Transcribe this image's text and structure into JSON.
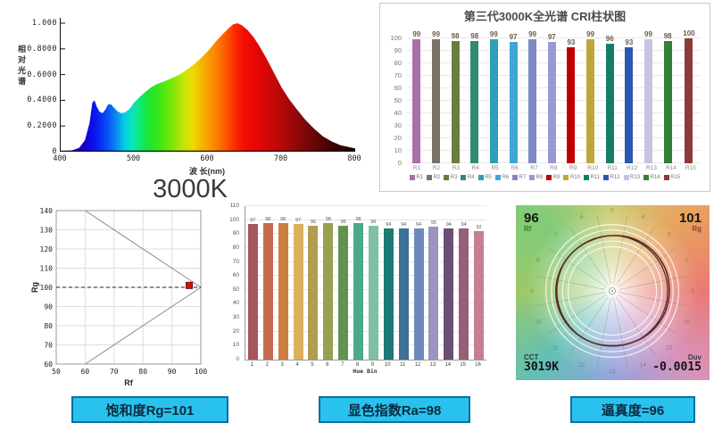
{
  "theme": {
    "caption_bg": "#29c2ef",
    "caption_border": "#0d6f9d",
    "caption_text": "#0a2a3c",
    "rf_label_color": "#2e7d32",
    "rg_label_color": "#8f3b2e",
    "marker_color": "#cc1111"
  },
  "captions": [
    {
      "text": "饱和度Rg=101"
    },
    {
      "text": "显色指数Ra=98"
    },
    {
      "text": "逼真度=96"
    }
  ],
  "chart_data": [
    {
      "id": "spectrum",
      "type": "area",
      "title": "3000K",
      "xlabel": "波 长(nm)",
      "ylabel": "相对光谱",
      "xlim": [
        400,
        800
      ],
      "ylim": [
        0,
        1
      ],
      "x_ticks": [
        400,
        500,
        600,
        700,
        800
      ],
      "y_ticks": [
        "0",
        "0.2000",
        "0.4000",
        "0.6000",
        "0.8000",
        "1.000"
      ],
      "grid": false,
      "x": [
        400,
        415,
        425,
        433,
        439,
        443,
        446,
        449,
        453,
        457,
        461,
        464,
        468,
        472,
        477,
        482,
        487,
        493,
        500,
        508,
        516,
        524,
        532,
        540,
        548,
        556,
        564,
        572,
        580,
        588,
        596,
        604,
        612,
        620,
        628,
        634,
        640,
        646,
        654,
        662,
        670,
        680,
        690,
        700,
        710,
        720,
        732,
        744,
        756,
        768,
        780,
        800
      ],
      "y": [
        0.005,
        0.01,
        0.03,
        0.09,
        0.22,
        0.38,
        0.4,
        0.35,
        0.31,
        0.3,
        0.33,
        0.365,
        0.37,
        0.345,
        0.315,
        0.3,
        0.305,
        0.33,
        0.385,
        0.43,
        0.47,
        0.505,
        0.53,
        0.545,
        0.565,
        0.585,
        0.61,
        0.64,
        0.675,
        0.715,
        0.76,
        0.81,
        0.865,
        0.915,
        0.96,
        0.99,
        1.0,
        0.985,
        0.945,
        0.89,
        0.82,
        0.72,
        0.61,
        0.5,
        0.41,
        0.335,
        0.25,
        0.18,
        0.12,
        0.08,
        0.05,
        0.025
      ],
      "gradient_stops": [
        [
          0,
          "#23009e"
        ],
        [
          8,
          "#1500d0"
        ],
        [
          11,
          "#0a10ee"
        ],
        [
          13,
          "#0628f2"
        ],
        [
          16,
          "#0a52f5"
        ],
        [
          19,
          "#0b8cf0"
        ],
        [
          21.5,
          "#07c8e8"
        ],
        [
          24,
          "#06e6c0"
        ],
        [
          27,
          "#10e878"
        ],
        [
          30,
          "#1ce62e"
        ],
        [
          34,
          "#3fe812"
        ],
        [
          38,
          "#7fe60a"
        ],
        [
          42,
          "#c6e605"
        ],
        [
          45,
          "#eed902"
        ],
        [
          48,
          "#f6b400"
        ],
        [
          52,
          "#fb8a00"
        ],
        [
          56,
          "#fd5a00"
        ],
        [
          59,
          "#fb2d00"
        ],
        [
          62,
          "#f50f02"
        ],
        [
          66,
          "#e80606"
        ],
        [
          70,
          "#d40707"
        ],
        [
          75,
          "#b50808"
        ],
        [
          80,
          "#920808"
        ],
        [
          85,
          "#6f0606"
        ],
        [
          90,
          "#4c0404"
        ],
        [
          95,
          "#2e0202"
        ],
        [
          100,
          "#1a0101"
        ]
      ]
    },
    {
      "id": "cri",
      "type": "bar",
      "title": "第三代3000K全光谱 CRI柱状图",
      "categories": [
        "R1",
        "R2",
        "R3",
        "R4",
        "R5",
        "R6",
        "R7",
        "R8",
        "R9",
        "R10",
        "R11",
        "R12",
        "R13",
        "R14",
        "R15"
      ],
      "values": [
        99,
        99,
        98,
        98,
        99,
        97,
        99,
        97,
        93,
        99,
        96,
        93,
        99,
        98,
        100
      ],
      "colors": [
        "#a96fa8",
        "#7b7164",
        "#6a7d3c",
        "#2f8c72",
        "#2f9eb7",
        "#3fa7d2",
        "#7e88c4",
        "#9b99d5",
        "#c00000",
        "#bda73a",
        "#157e6b",
        "#2a58b0",
        "#c6c4df",
        "#338039",
        "#8e3a38"
      ],
      "ylim": [
        0,
        100
      ],
      "y_tick_step": 10,
      "grid": true,
      "legend_position": "bottom"
    },
    {
      "id": "rg_rf",
      "type": "scatter",
      "xlabel": "Rf",
      "ylabel": "Rg",
      "xlim": [
        50,
        100
      ],
      "ylim": [
        60,
        140
      ],
      "x_ticks": [
        50,
        60,
        70,
        80,
        90,
        100
      ],
      "y_ticks": [
        60,
        70,
        80,
        90,
        100,
        110,
        120,
        130,
        140
      ],
      "grid": true,
      "point": {
        "x": 96,
        "y": 101
      },
      "boundary_lines": [
        [
          [
            60,
            140
          ],
          [
            100,
            100
          ]
        ],
        [
          [
            60,
            60
          ],
          [
            100,
            100
          ]
        ]
      ],
      "dashed_line_y": 100
    },
    {
      "id": "lcf",
      "type": "bar",
      "title": "",
      "xlabel": "Hue Bin",
      "ylabel": "Local Color Fidelity",
      "categories": [
        "1",
        "2",
        "3",
        "4",
        "5",
        "6",
        "7",
        "8",
        "9",
        "10",
        "11",
        "12",
        "13",
        "14",
        "15",
        "16"
      ],
      "values": [
        97,
        98,
        98,
        97,
        96,
        98,
        96,
        98,
        96,
        94,
        94,
        94,
        95,
        94,
        94,
        92
      ],
      "colors": [
        "#a8555f",
        "#c46a4e",
        "#cd7e41",
        "#dcb05e",
        "#b09d4f",
        "#97a051",
        "#609350",
        "#4caa89",
        "#7dc1a2",
        "#1d7a74",
        "#3f7095",
        "#6d89be",
        "#9b94be",
        "#6b4f72",
        "#955e79",
        "#c57f92"
      ],
      "ylim": [
        0,
        110
      ],
      "y_tick_step": 10,
      "grid": true
    },
    {
      "id": "cvg",
      "type": "color-vector-graphic",
      "rf_value": "96",
      "rf_label": "Rf",
      "rg_value": "101",
      "rg_label": "Rg",
      "cct_label": "CCT",
      "cct_value": "3019K",
      "duv_label": "Duv",
      "duv_value": "-0.0015",
      "hue_bin_count": 16,
      "ring_scales": [
        0.8,
        0.9,
        1.1,
        1.2
      ],
      "measured_radii": [
        1.03,
        1.04,
        1.03,
        1.02,
        1.0,
        0.99,
        1.0,
        1.01,
        1.02,
        1.02,
        1.01,
        1.0,
        0.99,
        1.0,
        1.02,
        1.03
      ],
      "hue_wheel_colors": [
        "#e87a72",
        "#d893bb",
        "#93a2de",
        "#62c0b2",
        "#9cc96a",
        "#80cb7a",
        "#cdcc70",
        "#e8a25e",
        "#e87a72"
      ]
    }
  ]
}
